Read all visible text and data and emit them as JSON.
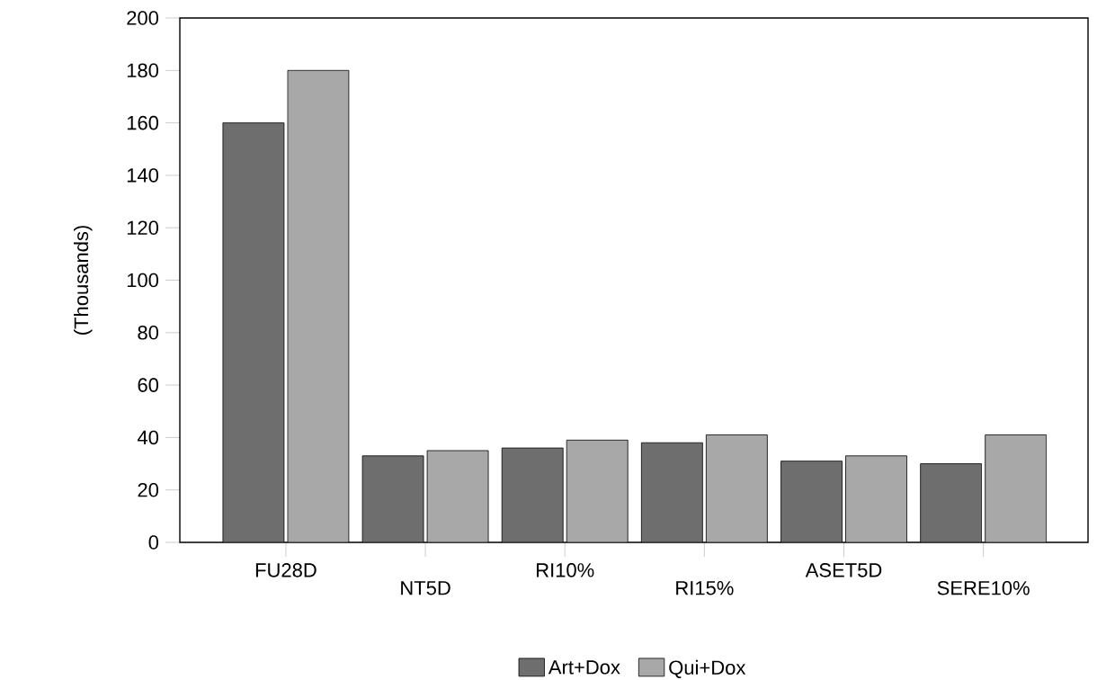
{
  "chart_data": {
    "type": "bar",
    "ylabel": "(Thousands)",
    "categories": [
      "FU28D",
      "NT5D",
      "RI10%",
      "RI15%",
      "ASET5D",
      "SERE10%"
    ],
    "series": [
      {
        "name": "Art+Dox",
        "color": "#6e6e6e",
        "values": [
          160,
          33,
          36,
          38,
          31,
          30
        ]
      },
      {
        "name": "Qui+Dox",
        "color": "#a8a8a8",
        "values": [
          180,
          35,
          39,
          41,
          33,
          41
        ]
      }
    ],
    "ylim": [
      0,
      200
    ],
    "yticks": [
      0,
      20,
      40,
      60,
      80,
      100,
      120,
      140,
      160,
      180,
      200
    ],
    "grid": false,
    "legend": "bottom"
  }
}
